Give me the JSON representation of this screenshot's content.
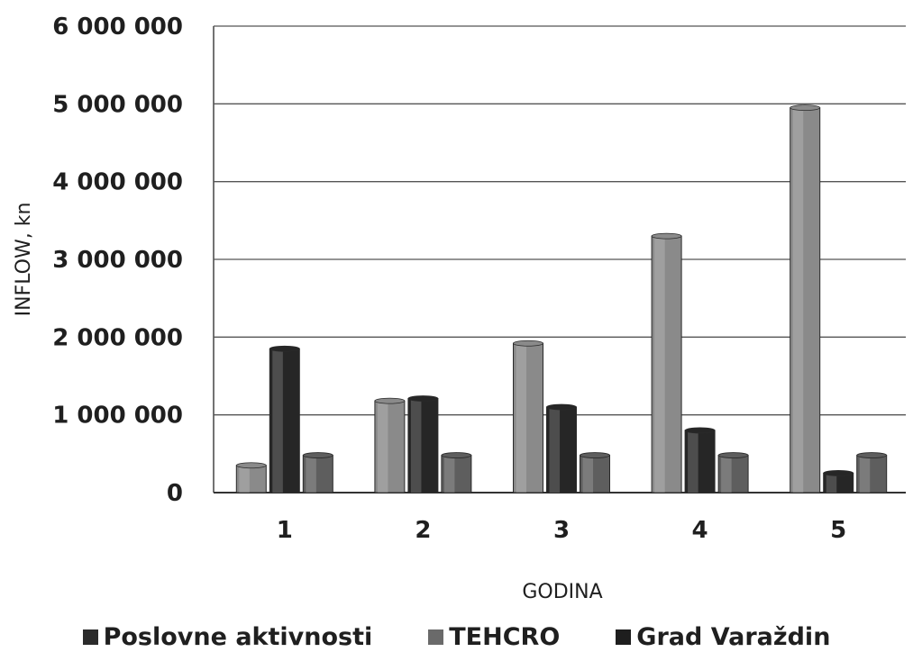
{
  "chart_data": {
    "type": "bar",
    "xlabel": "GODINA",
    "ylabel": "INFLOW, kn",
    "categories": [
      "1",
      "2",
      "3",
      "4",
      "5"
    ],
    "ylim": [
      0,
      6000000
    ],
    "yticks": [
      0,
      1000000,
      2000000,
      3000000,
      4000000,
      5000000,
      6000000
    ],
    "ytick_labels": [
      "0",
      "1 000 000",
      "2 000 000",
      "3 000 000",
      "4 000 000",
      "5 000 000",
      "6 000 000"
    ],
    "grid": true,
    "legend_position": "bottom",
    "series": [
      {
        "name": "Poslovne aktivnosti",
        "color": "#8a8a8a",
        "values": [
          350000,
          1180000,
          1920000,
          3300000,
          4950000
        ]
      },
      {
        "name": "TEHCRO",
        "color": "#262626",
        "values": [
          1850000,
          1210000,
          1100000,
          800000,
          250000
        ]
      },
      {
        "name": "Grad Varaždin",
        "color": "#5e5e5e",
        "values": [
          480000,
          480000,
          480000,
          480000,
          480000
        ]
      }
    ]
  },
  "legend_swatch_colors": [
    "#2b2b2b",
    "#6a6a6a",
    "#1e1e1e"
  ]
}
